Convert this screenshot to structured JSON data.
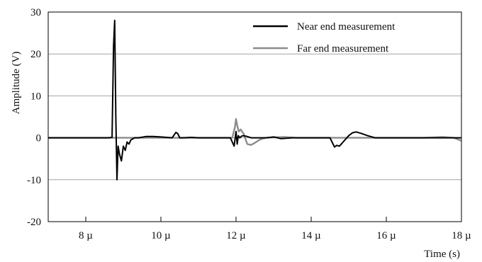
{
  "chart_data": {
    "type": "line",
    "xlabel": "Time (s)",
    "ylabel": "Amplitude (V)",
    "xlim": [
      7.0,
      18.0
    ],
    "ylim": [
      -20,
      30
    ],
    "xticks": [
      {
        "value": 8,
        "label": "8 µ"
      },
      {
        "value": 10,
        "label": "10 µ"
      },
      {
        "value": 12,
        "label": "12 µ"
      },
      {
        "value": 14,
        "label": "14 µ"
      },
      {
        "value": 16,
        "label": "16 µ"
      },
      {
        "value": 18,
        "label": "18 µ"
      }
    ],
    "yticks": [
      {
        "value": 30,
        "label": "30"
      },
      {
        "value": 20,
        "label": "20"
      },
      {
        "value": 10,
        "label": "10"
      },
      {
        "value": 0,
        "label": "0"
      },
      {
        "value": -10,
        "label": "-10"
      },
      {
        "value": -20,
        "label": "-20"
      }
    ],
    "grid": "horizontal",
    "legend_position": "top-right",
    "series": [
      {
        "name": "Near end measurement",
        "color": "#000000",
        "x": [
          7.0,
          8.0,
          8.6,
          8.7,
          8.74,
          8.77,
          8.8,
          8.83,
          8.86,
          8.9,
          8.95,
          9.0,
          9.05,
          9.1,
          9.15,
          9.2,
          9.3,
          9.4,
          9.6,
          9.8,
          10.0,
          10.3,
          10.4,
          10.45,
          10.5,
          10.6,
          10.8,
          11.0,
          11.5,
          11.85,
          11.95,
          12.0,
          12.03,
          12.06,
          12.1,
          12.15,
          12.2,
          12.3,
          12.4,
          12.6,
          12.8,
          13.0,
          13.2,
          13.5,
          14.0,
          14.5,
          14.62,
          14.68,
          14.75,
          14.85,
          15.0,
          15.1,
          15.2,
          15.35,
          15.5,
          15.7,
          16.0,
          16.5,
          17.0,
          17.5,
          18.0
        ],
        "y": [
          0.0,
          0.0,
          0.0,
          0.1,
          22.0,
          28.0,
          5.0,
          -10.0,
          -2.0,
          -4.0,
          -5.5,
          -2.0,
          -3.0,
          -1.0,
          -1.5,
          -0.5,
          0.0,
          0.0,
          0.3,
          0.3,
          0.2,
          0.0,
          1.3,
          1.0,
          0.0,
          0.0,
          0.1,
          0.0,
          0.0,
          0.0,
          -2.0,
          1.5,
          -1.5,
          0.5,
          0.0,
          0.4,
          0.5,
          0.3,
          0.0,
          0.0,
          0.0,
          0.2,
          -0.2,
          0.0,
          0.0,
          0.0,
          -2.2,
          -1.8,
          -2.0,
          -1.0,
          0.5,
          1.2,
          1.4,
          1.0,
          0.5,
          0.0,
          0.0,
          0.0,
          0.0,
          0.0,
          0.0
        ]
      },
      {
        "name": "Far end measurement",
        "color": "#8c8c8c",
        "x": [
          7.0,
          8.0,
          9.0,
          10.0,
          11.0,
          11.9,
          11.97,
          12.0,
          12.03,
          12.07,
          12.12,
          12.2,
          12.3,
          12.4,
          12.5,
          12.6,
          12.7,
          12.8,
          13.0,
          13.3,
          13.6,
          14.0,
          14.5,
          15.0,
          15.5,
          16.0,
          16.5,
          17.0,
          17.5,
          17.8,
          18.0
        ],
        "y": [
          0.0,
          0.0,
          0.0,
          0.0,
          0.0,
          0.0,
          2.5,
          4.5,
          3.0,
          1.5,
          2.0,
          1.0,
          -1.5,
          -1.7,
          -1.2,
          -0.6,
          -0.2,
          0.0,
          0.1,
          0.2,
          0.0,
          0.0,
          0.0,
          0.0,
          0.0,
          0.0,
          0.0,
          0.0,
          0.2,
          0.0,
          -0.7
        ]
      }
    ]
  }
}
